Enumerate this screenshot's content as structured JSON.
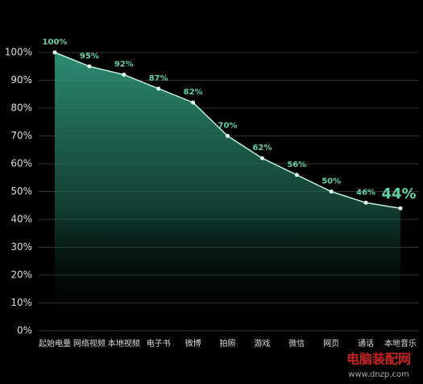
{
  "chart_data": {
    "type": "line",
    "categories": [
      "起始电量",
      "网络视频",
      "本地视频",
      "电子书",
      "微博",
      "拍照",
      "游戏",
      "微信",
      "网页",
      "通话",
      "本地音乐"
    ],
    "series": [
      {
        "color": "#5fd3a4",
        "values": [
          100,
          95,
          92,
          87,
          82,
          70,
          62,
          56,
          50,
          46,
          44
        ],
        "value_labels": [
          "100%",
          "95%",
          "92%",
          "87%",
          "82%",
          "70%",
          "62%",
          "56%",
          "50%",
          "46%",
          "44%"
        ]
      }
    ],
    "ylim": [
      0,
      100
    ],
    "yticks": [
      {
        "value": 0,
        "label": "0%"
      },
      {
        "value": 10,
        "label": "10%"
      },
      {
        "value": 20,
        "label": "20%"
      },
      {
        "value": 30,
        "label": "30%"
      },
      {
        "value": 40,
        "label": "40%"
      },
      {
        "value": 50,
        "label": "50%"
      },
      {
        "value": 60,
        "label": "60%"
      },
      {
        "value": 70,
        "label": "70%"
      },
      {
        "value": 80,
        "label": "80%"
      },
      {
        "value": 90,
        "label": "90%"
      },
      {
        "value": 100,
        "label": "100%"
      }
    ],
    "grid": true
  },
  "watermark": {
    "title": "电脑装配网",
    "url": "www.dnzp.com"
  }
}
